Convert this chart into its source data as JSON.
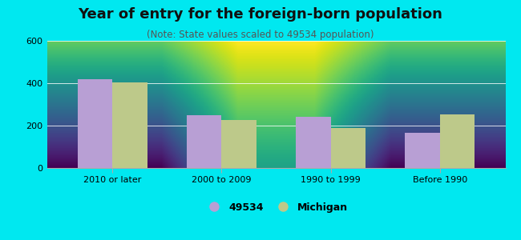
{
  "title": "Year of entry for the foreign-born population",
  "subtitle": "(Note: State values scaled to 49534 population)",
  "categories": [
    "2010 or later",
    "2000 to 2009",
    "1990 to 1999",
    "Before 1990"
  ],
  "values_49534": [
    420,
    248,
    242,
    165
  ],
  "values_michigan": [
    405,
    225,
    190,
    253
  ],
  "bar_color_49534": "#b89fd4",
  "bar_color_michigan": "#bdc98a",
  "background_outer": "#00e8f0",
  "ylim": [
    0,
    600
  ],
  "yticks": [
    0,
    200,
    400,
    600
  ],
  "legend_labels": [
    "49534",
    "Michigan"
  ],
  "bar_width": 0.32,
  "title_fontsize": 13,
  "subtitle_fontsize": 8.5,
  "tick_fontsize": 8,
  "legend_fontsize": 9,
  "bg_top_color": "#f0faf0",
  "bg_bottom_color": "#d0e8d0"
}
